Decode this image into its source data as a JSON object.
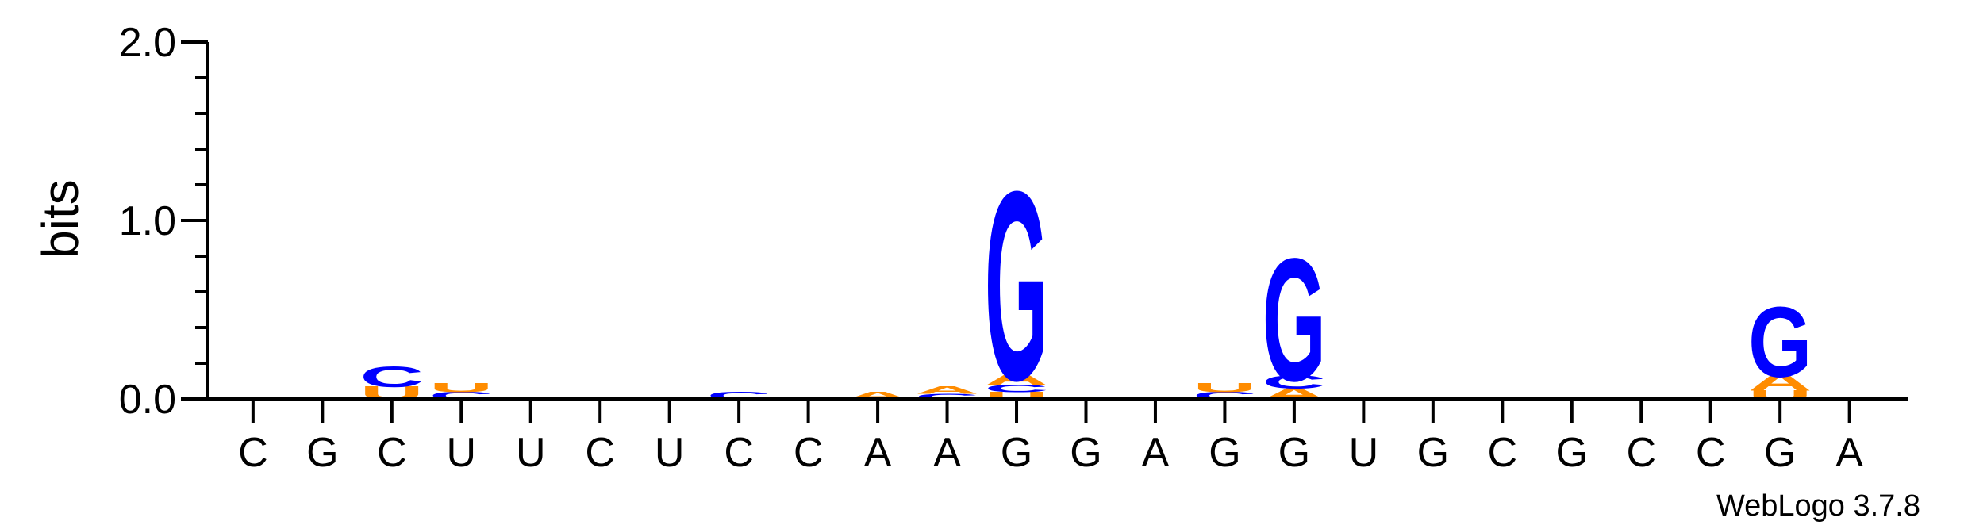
{
  "chart_data": {
    "type": "sequence-logo",
    "ylabel": "bits",
    "ylim": [
      0,
      2.0
    ],
    "yticks": [
      "0.0",
      "1.0",
      "2.0"
    ],
    "credit": "WebLogo 3.7.8",
    "colors": {
      "G": "#0000ff",
      "C": "#0000ff",
      "A": "#ff8c00",
      "U": "#ff8c00"
    },
    "categories": [
      "C",
      "G",
      "C",
      "U",
      "U",
      "C",
      "U",
      "C",
      "C",
      "A",
      "A",
      "G",
      "G",
      "A",
      "G",
      "G",
      "U",
      "G",
      "C",
      "G",
      "C",
      "C",
      "G",
      "A"
    ],
    "positions": [
      {
        "label": "C",
        "stack": []
      },
      {
        "label": "G",
        "stack": []
      },
      {
        "label": "C",
        "stack": [
          {
            "letter": "U",
            "bits": 0.07
          },
          {
            "letter": "C",
            "bits": 0.11
          }
        ]
      },
      {
        "label": "U",
        "stack": [
          {
            "letter": "C",
            "bits": 0.04
          },
          {
            "letter": "U",
            "bits": 0.05
          }
        ]
      },
      {
        "label": "U",
        "stack": []
      },
      {
        "label": "C",
        "stack": []
      },
      {
        "label": "U",
        "stack": []
      },
      {
        "label": "C",
        "stack": [
          {
            "letter": "C",
            "bits": 0.04
          }
        ]
      },
      {
        "label": "C",
        "stack": []
      },
      {
        "label": "A",
        "stack": [
          {
            "letter": "A",
            "bits": 0.04
          }
        ]
      },
      {
        "label": "A",
        "stack": [
          {
            "letter": "C",
            "bits": 0.03
          },
          {
            "letter": "A",
            "bits": 0.04
          }
        ]
      },
      {
        "label": "G",
        "stack": [
          {
            "letter": "U",
            "bits": 0.04
          },
          {
            "letter": "C",
            "bits": 0.04
          },
          {
            "letter": "A",
            "bits": 0.07
          },
          {
            "letter": "G",
            "bits": 1.0
          }
        ]
      },
      {
        "label": "G",
        "stack": []
      },
      {
        "label": "A",
        "stack": []
      },
      {
        "label": "G",
        "stack": [
          {
            "letter": "C",
            "bits": 0.04
          },
          {
            "letter": "U",
            "bits": 0.05
          }
        ]
      },
      {
        "label": "G",
        "stack": [
          {
            "letter": "A",
            "bits": 0.06
          },
          {
            "letter": "C",
            "bits": 0.07
          },
          {
            "letter": "G",
            "bits": 0.65
          }
        ]
      },
      {
        "label": "U",
        "stack": []
      },
      {
        "label": "G",
        "stack": []
      },
      {
        "label": "C",
        "stack": []
      },
      {
        "label": "G",
        "stack": []
      },
      {
        "label": "C",
        "stack": []
      },
      {
        "label": "C",
        "stack": []
      },
      {
        "label": "G",
        "stack": [
          {
            "letter": "U",
            "bits": 0.05
          },
          {
            "letter": "A",
            "bits": 0.09
          },
          {
            "letter": "G",
            "bits": 0.37
          }
        ]
      },
      {
        "label": "A",
        "stack": []
      }
    ]
  }
}
